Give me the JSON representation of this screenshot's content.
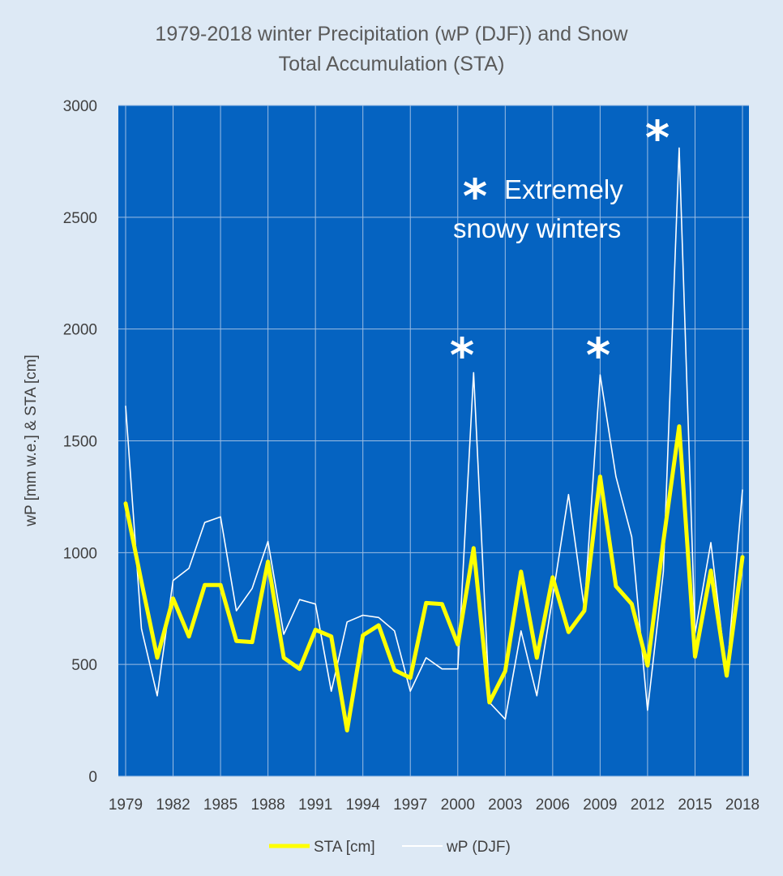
{
  "chart_data": {
    "type": "line",
    "title_lines": [
      "1979-2018 winter Precipitation (wP (DJF)) and Snow",
      "Total Accumulation (STA)"
    ],
    "xlabel": "",
    "ylabel": "wP [mm w.e.] & STA [cm]",
    "ylim": [
      0,
      3000
    ],
    "y_ticks": [
      0,
      500,
      1000,
      1500,
      2000,
      2500,
      3000
    ],
    "x": [
      1979,
      1980,
      1981,
      1982,
      1983,
      1984,
      1985,
      1986,
      1987,
      1988,
      1989,
      1990,
      1991,
      1992,
      1993,
      1994,
      1995,
      1996,
      1997,
      1998,
      1999,
      2000,
      2001,
      2002,
      2003,
      2004,
      2005,
      2006,
      2007,
      2008,
      2009,
      2010,
      2011,
      2012,
      2013,
      2014,
      2015,
      2016,
      2017,
      2018
    ],
    "x_tick_labels": [
      "1979",
      "1982",
      "1985",
      "1988",
      "1991",
      "1994",
      "1997",
      "2000",
      "2003",
      "2006",
      "2009",
      "2012",
      "2015",
      "2018"
    ],
    "grid": true,
    "plot_background": "#0563c1",
    "legend_position": "bottom",
    "series": [
      {
        "name": "STA [cm]",
        "color": "#ffff00",
        "values": [
          1220,
          870,
          530,
          795,
          625,
          855,
          855,
          605,
          600,
          960,
          530,
          480,
          655,
          625,
          205,
          630,
          675,
          475,
          440,
          775,
          770,
          590,
          1020,
          330,
          470,
          915,
          530,
          890,
          645,
          740,
          1340,
          850,
          770,
          495,
          1050,
          1565,
          535,
          920,
          450,
          980
        ]
      },
      {
        "name": "wP (DJF)",
        "color": "#ffffff",
        "values": [
          1655,
          660,
          360,
          875,
          930,
          1135,
          1160,
          740,
          840,
          1050,
          635,
          790,
          770,
          380,
          690,
          720,
          710,
          650,
          380,
          530,
          480,
          480,
          1805,
          330,
          255,
          650,
          360,
          800,
          1260,
          750,
          1795,
          1340,
          1070,
          295,
          915,
          2810,
          640,
          1045,
          450,
          1280
        ]
      }
    ],
    "annotations": {
      "star_symbol": "*",
      "label_line1": "Extremely",
      "label_line2": "snowy winters",
      "starred_years": [
        2001,
        2009,
        2013
      ]
    }
  }
}
